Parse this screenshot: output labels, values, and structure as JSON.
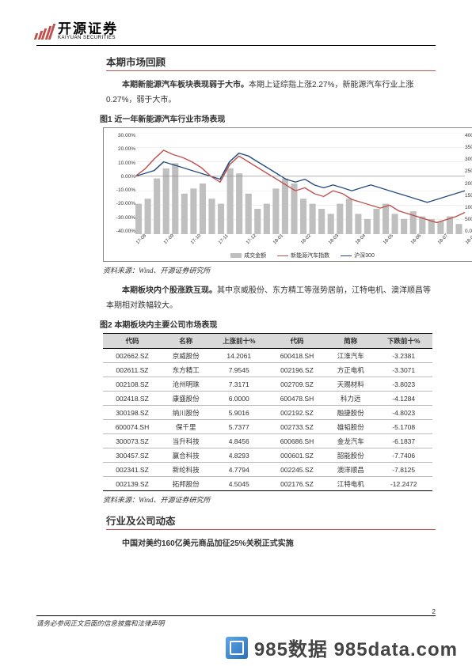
{
  "logo": {
    "cn": "开源证券",
    "en": "KAIYUAN SECURITIES",
    "bar_color": "#c0504d"
  },
  "page_number": "2",
  "footer_note": "请务必参阅正文后面的信息披露和法律声明",
  "watermark": "985数据  985data.com",
  "section1": {
    "title": "本期市场回顾",
    "para1_bold": "本期新能源汽车板块表现弱于大市。",
    "para1_rest": "本期上证综指上涨2.27%，新能源汽车行业上涨0.27%，弱于大市。"
  },
  "fig1": {
    "caption": "图1  近一年新能源汽车行业市场表现",
    "source": "资料来源：Wind、开源证券研究所",
    "y_left": {
      "labels": [
        "30.00%",
        "20.00%",
        "10.00%",
        "0.00%",
        "-10.00%",
        "-20.00%",
        "-30.00%",
        "-40.00%"
      ],
      "min": -40,
      "max": 30
    },
    "y_right": {
      "labels": [
        "40000.00",
        "35000.00",
        "30000.00",
        "25000.00",
        "20000.00",
        "15000.00",
        "10000.00",
        "5000.00",
        "0.00"
      ],
      "min": 0,
      "max": 40000
    },
    "x_labels": [
      "17-08",
      "17-09",
      "17-10",
      "17-11",
      "17-12",
      "18-01",
      "18-02",
      "18-03",
      "18-04",
      "18-05",
      "18-06",
      "18-07",
      "18-08"
    ],
    "legend": [
      {
        "label": "成交金额",
        "type": "bar",
        "color": "#bfbfbf"
      },
      {
        "label": "新能源汽车指数",
        "type": "line",
        "color": "#c0504d"
      },
      {
        "label": "沪深300",
        "type": "line",
        "color": "#1f497d"
      }
    ],
    "volume_bars": [
      12000,
      14000,
      22000,
      26000,
      28000,
      16000,
      18000,
      20000,
      14000,
      12000,
      26000,
      24000,
      16000,
      10000,
      12000,
      18000,
      22000,
      20000,
      14000,
      12000,
      10000,
      8000,
      12000,
      14000,
      8000,
      6000,
      10000,
      12000,
      8000,
      6000,
      9000,
      7000,
      6000,
      5000,
      7000,
      4000
    ],
    "series_nev": [
      0,
      5,
      12,
      18,
      15,
      13,
      10,
      6,
      0,
      -4,
      8,
      14,
      10,
      6,
      2,
      -2,
      -6,
      -10,
      -8,
      -12,
      -14,
      -10,
      -12,
      -16,
      -18,
      -20,
      -22,
      -20,
      -24,
      -26,
      -28,
      -30,
      -32,
      -30,
      -28,
      -25
    ],
    "series_hs300": [
      0,
      2,
      4,
      10,
      8,
      6,
      4,
      2,
      0,
      -2,
      10,
      16,
      14,
      10,
      6,
      2,
      -2,
      -4,
      -2,
      -6,
      -8,
      -6,
      -8,
      -10,
      -8,
      -6,
      -8,
      -10,
      -12,
      -14,
      -16,
      -18,
      -16,
      -14,
      -12,
      -10
    ]
  },
  "between_para": {
    "bold": "本期板块内个股涨跌互现。",
    "rest": "其中京威股份、东方精工等涨势居前，江特电机、澳洋顺昌等本期相对跌幅较大。"
  },
  "fig2": {
    "caption": "图2  本期板块内主要公司市场表现",
    "source": "资料来源：Wind、开源证券研究所",
    "columns": [
      "代码",
      "名称",
      "上涨前十%",
      "代码",
      "简称",
      "下跌前十%"
    ],
    "rows": [
      [
        "002662.SZ",
        "京威股份",
        "14.2061",
        "600418.SH",
        "江淮汽车",
        "-3.2381"
      ],
      [
        "002611.SZ",
        "东方精工",
        "7.9545",
        "002196.SZ",
        "方正电机",
        "-3.3071"
      ],
      [
        "002108.SZ",
        "沧州明珠",
        "7.3171",
        "002709.SZ",
        "天赐材料",
        "-3.8023"
      ],
      [
        "002418.SZ",
        "康盛股份",
        "6.0000",
        "600478.SH",
        "科力远",
        "-4.1284"
      ],
      [
        "300198.SZ",
        "纳川股份",
        "5.9016",
        "002192.SZ",
        "融捷股份",
        "-4.8023"
      ],
      [
        "600074.SH",
        "保千里",
        "5.7377",
        "002733.SZ",
        "雄韬股份",
        "-5.1708"
      ],
      [
        "300073.SZ",
        "当升科技",
        "4.8456",
        "600686.SH",
        "金龙汽车",
        "-6.1837"
      ],
      [
        "300457.SZ",
        "赢合科技",
        "4.8293",
        "000601.SZ",
        "韶能股份",
        "-7.7406"
      ],
      [
        "002341.SZ",
        "新纶科技",
        "4.7794",
        "002245.SZ",
        "澳洋顺昌",
        "-7.8125"
      ],
      [
        "002139.SZ",
        "拓邦股份",
        "4.5045",
        "002176.SZ",
        "江特电机",
        "-12.2472"
      ]
    ]
  },
  "section2": {
    "title": "行业及公司动态",
    "para_bold": "中国对美约160亿美元商品加征25%关税正式实施"
  }
}
